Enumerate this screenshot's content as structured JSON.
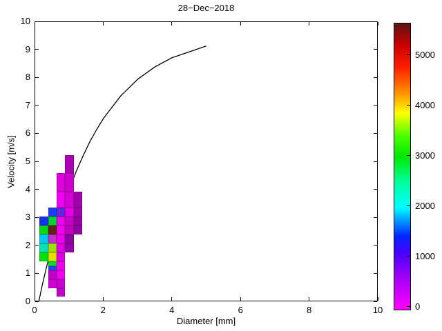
{
  "title": "28−Dec−2018",
  "axes": {
    "xlabel": "Diameter [mm]",
    "ylabel": "Velocity [m/s]",
    "xlim": [
      0,
      10
    ],
    "ylim": [
      0,
      10
    ],
    "xticks": [
      "0",
      "2",
      "4",
      "6",
      "8",
      "10"
    ],
    "xtick_values": [
      0,
      2,
      4,
      6,
      8,
      10
    ],
    "yticks": [
      "0",
      "1",
      "2",
      "3",
      "4",
      "5",
      "6",
      "7",
      "8",
      "9",
      "10"
    ],
    "ytick_values": [
      0,
      1,
      2,
      3,
      4,
      5,
      6,
      7,
      8,
      9,
      10
    ]
  },
  "colorbar": {
    "tick_labels": [
      "0",
      "1000",
      "2000",
      "3000",
      "4000",
      "5000"
    ],
    "tick_values": [
      0,
      1000,
      2000,
      3000,
      4000,
      5000
    ],
    "max_value": 5610,
    "gradient_stops": [
      {
        "value": 0,
        "color": "#FF00FF"
      },
      {
        "value": 600,
        "color": "#A600F5"
      },
      {
        "value": 1100,
        "color": "#4A00FF"
      },
      {
        "value": 1450,
        "color": "#0028FF"
      },
      {
        "value": 2000,
        "color": "#00FFFF"
      },
      {
        "value": 2500,
        "color": "#00FF9C"
      },
      {
        "value": 3000,
        "color": "#00E800"
      },
      {
        "value": 3400,
        "color": "#48FF00"
      },
      {
        "value": 3850,
        "color": "#FFFF00"
      },
      {
        "value": 4250,
        "color": "#FF9000"
      },
      {
        "value": 4750,
        "color": "#FF1E00"
      },
      {
        "value": 5200,
        "color": "#C80000"
      },
      {
        "value": 5610,
        "color": "#5A1414"
      }
    ]
  },
  "chart_data": {
    "type": "heatmap",
    "title": "28−Dec−2018",
    "xlabel": "Diameter [mm]",
    "ylabel": "Velocity [m/s]",
    "xlim": [
      0,
      10
    ],
    "ylim": [
      0,
      10
    ],
    "grid": false,
    "legend": "colorbar right, counts 0-5610",
    "cells": [
      {
        "d0": 0.625,
        "d1": 0.875,
        "v0": 0.2,
        "v1": 0.5,
        "value": 400,
        "color": "#BE00C8"
      },
      {
        "d0": 0.375,
        "d1": 0.625,
        "v0": 0.5,
        "v1": 0.82,
        "value": 350,
        "color": "#D200D2"
      },
      {
        "d0": 0.625,
        "d1": 0.875,
        "v0": 0.5,
        "v1": 0.82,
        "value": 400,
        "color": "#C800D2"
      },
      {
        "d0": 0.375,
        "d1": 0.625,
        "v0": 0.82,
        "v1": 1.13,
        "value": 450,
        "color": "#C000C8"
      },
      {
        "d0": 0.625,
        "d1": 0.875,
        "v0": 0.82,
        "v1": 1.13,
        "value": 150,
        "color": "#F000F0"
      },
      {
        "d0": 0.375,
        "d1": 0.625,
        "v0": 1.13,
        "v1": 1.29,
        "value": 1450,
        "color": "#2846F0"
      },
      {
        "d0": 0.375,
        "d1": 0.625,
        "v0": 1.29,
        "v1": 1.45,
        "value": 2900,
        "color": "#00DC28"
      },
      {
        "d0": 0.625,
        "d1": 0.875,
        "v0": 1.13,
        "v1": 1.45,
        "value": 150,
        "color": "#EE00EE"
      },
      {
        "d0": 0.125,
        "d1": 0.375,
        "v0": 1.45,
        "v1": 1.77,
        "value": 3000,
        "color": "#00E100"
      },
      {
        "d0": 0.375,
        "d1": 0.625,
        "v0": 1.45,
        "v1": 1.77,
        "value": 3750,
        "color": "#E1E100"
      },
      {
        "d0": 0.625,
        "d1": 0.875,
        "v0": 1.45,
        "v1": 1.77,
        "value": 300,
        "color": "#DC00DC"
      },
      {
        "d0": 0.125,
        "d1": 0.375,
        "v0": 1.77,
        "v1": 2.09,
        "value": 2250,
        "color": "#00E1B4"
      },
      {
        "d0": 0.375,
        "d1": 0.625,
        "v0": 1.77,
        "v1": 2.09,
        "value": 3500,
        "color": "#A0E100"
      },
      {
        "d0": 0.625,
        "d1": 0.875,
        "v0": 1.77,
        "v1": 2.09,
        "value": 250,
        "color": "#E100E1"
      },
      {
        "d0": 0.875,
        "d1": 1.125,
        "v0": 1.77,
        "v1": 2.09,
        "value": 700,
        "color": "#9600AA"
      },
      {
        "d0": 0.125,
        "d1": 0.375,
        "v0": 2.09,
        "v1": 2.41,
        "value": 1900,
        "color": "#00C8F0"
      },
      {
        "d0": 0.375,
        "d1": 0.625,
        "v0": 2.09,
        "v1": 2.41,
        "value": 500,
        "color": "#BE32C8"
      },
      {
        "d0": 0.625,
        "d1": 0.875,
        "v0": 2.09,
        "v1": 2.41,
        "value": 150,
        "color": "#F000F0"
      },
      {
        "d0": 0.875,
        "d1": 1.125,
        "v0": 2.09,
        "v1": 2.41,
        "value": 750,
        "color": "#8C00A0"
      },
      {
        "d0": 0.125,
        "d1": 0.375,
        "v0": 2.41,
        "v1": 2.73,
        "value": 2900,
        "color": "#00DC14"
      },
      {
        "d0": 0.375,
        "d1": 0.625,
        "v0": 2.41,
        "v1": 2.73,
        "value": 5600,
        "color": "#64231A"
      },
      {
        "d0": 0.625,
        "d1": 0.875,
        "v0": 2.41,
        "v1": 2.73,
        "value": 150,
        "color": "#F000F0"
      },
      {
        "d0": 0.875,
        "d1": 1.125,
        "v0": 2.41,
        "v1": 2.73,
        "value": 500,
        "color": "#BE00BE"
      },
      {
        "d0": 1.125,
        "d1": 1.375,
        "v0": 2.41,
        "v1": 2.73,
        "value": 700,
        "color": "#9100A0"
      },
      {
        "d0": 0.125,
        "d1": 0.375,
        "v0": 2.73,
        "v1": 3.05,
        "value": 1500,
        "color": "#1432F0"
      },
      {
        "d0": 0.375,
        "d1": 0.625,
        "v0": 2.73,
        "v1": 3.05,
        "value": 2800,
        "color": "#00D232"
      },
      {
        "d0": 0.625,
        "d1": 0.875,
        "v0": 2.73,
        "v1": 3.05,
        "value": 150,
        "color": "#EE00EE"
      },
      {
        "d0": 0.875,
        "d1": 1.125,
        "v0": 2.73,
        "v1": 3.05,
        "value": 450,
        "color": "#C800C8"
      },
      {
        "d0": 1.125,
        "d1": 1.375,
        "v0": 2.73,
        "v1": 3.05,
        "value": 700,
        "color": "#9600A0"
      },
      {
        "d0": 0.375,
        "d1": 0.625,
        "v0": 3.05,
        "v1": 3.37,
        "value": 1450,
        "color": "#1E3CF5"
      },
      {
        "d0": 0.625,
        "d1": 0.875,
        "v0": 3.05,
        "v1": 3.37,
        "value": 1100,
        "color": "#5F28DC"
      },
      {
        "d0": 0.875,
        "d1": 1.125,
        "v0": 3.05,
        "v1": 3.37,
        "value": 200,
        "color": "#E600E6"
      },
      {
        "d0": 1.125,
        "d1": 1.375,
        "v0": 3.05,
        "v1": 3.37,
        "value": 650,
        "color": "#A000AA"
      },
      {
        "d0": 0.625,
        "d1": 0.875,
        "v0": 3.37,
        "v1": 3.95,
        "value": 150,
        "color": "#F000F0"
      },
      {
        "d0": 0.875,
        "d1": 1.125,
        "v0": 3.37,
        "v1": 3.95,
        "value": 350,
        "color": "#D200D2"
      },
      {
        "d0": 1.125,
        "d1": 1.375,
        "v0": 3.37,
        "v1": 3.95,
        "value": 650,
        "color": "#A000AA"
      },
      {
        "d0": 0.625,
        "d1": 0.875,
        "v0": 3.95,
        "v1": 4.6,
        "value": 300,
        "color": "#DC00DC"
      },
      {
        "d0": 0.875,
        "d1": 1.125,
        "v0": 3.95,
        "v1": 4.6,
        "value": 400,
        "color": "#CD00CD"
      },
      {
        "d0": 0.875,
        "d1": 1.125,
        "v0": 4.6,
        "v1": 5.25,
        "value": 600,
        "color": "#AA00B4"
      }
    ],
    "curve": {
      "name": "terminal velocity curve v = 9.65 − 10.3·exp(−0.6·D)",
      "points": [
        [
          0.11,
          0.0
        ],
        [
          0.2,
          0.52
        ],
        [
          0.3,
          1.05
        ],
        [
          0.4,
          1.55
        ],
        [
          0.5,
          2.02
        ],
        [
          0.6,
          2.46
        ],
        [
          0.7,
          2.88
        ],
        [
          0.8,
          3.28
        ],
        [
          0.9,
          3.65
        ],
        [
          1.0,
          4.0
        ],
        [
          1.2,
          4.64
        ],
        [
          1.4,
          5.2
        ],
        [
          1.6,
          5.71
        ],
        [
          1.8,
          6.15
        ],
        [
          2.0,
          6.55
        ],
        [
          2.5,
          7.35
        ],
        [
          3.0,
          7.95
        ],
        [
          3.5,
          8.39
        ],
        [
          4.0,
          8.72
        ],
        [
          5.0,
          9.14
        ]
      ]
    }
  }
}
